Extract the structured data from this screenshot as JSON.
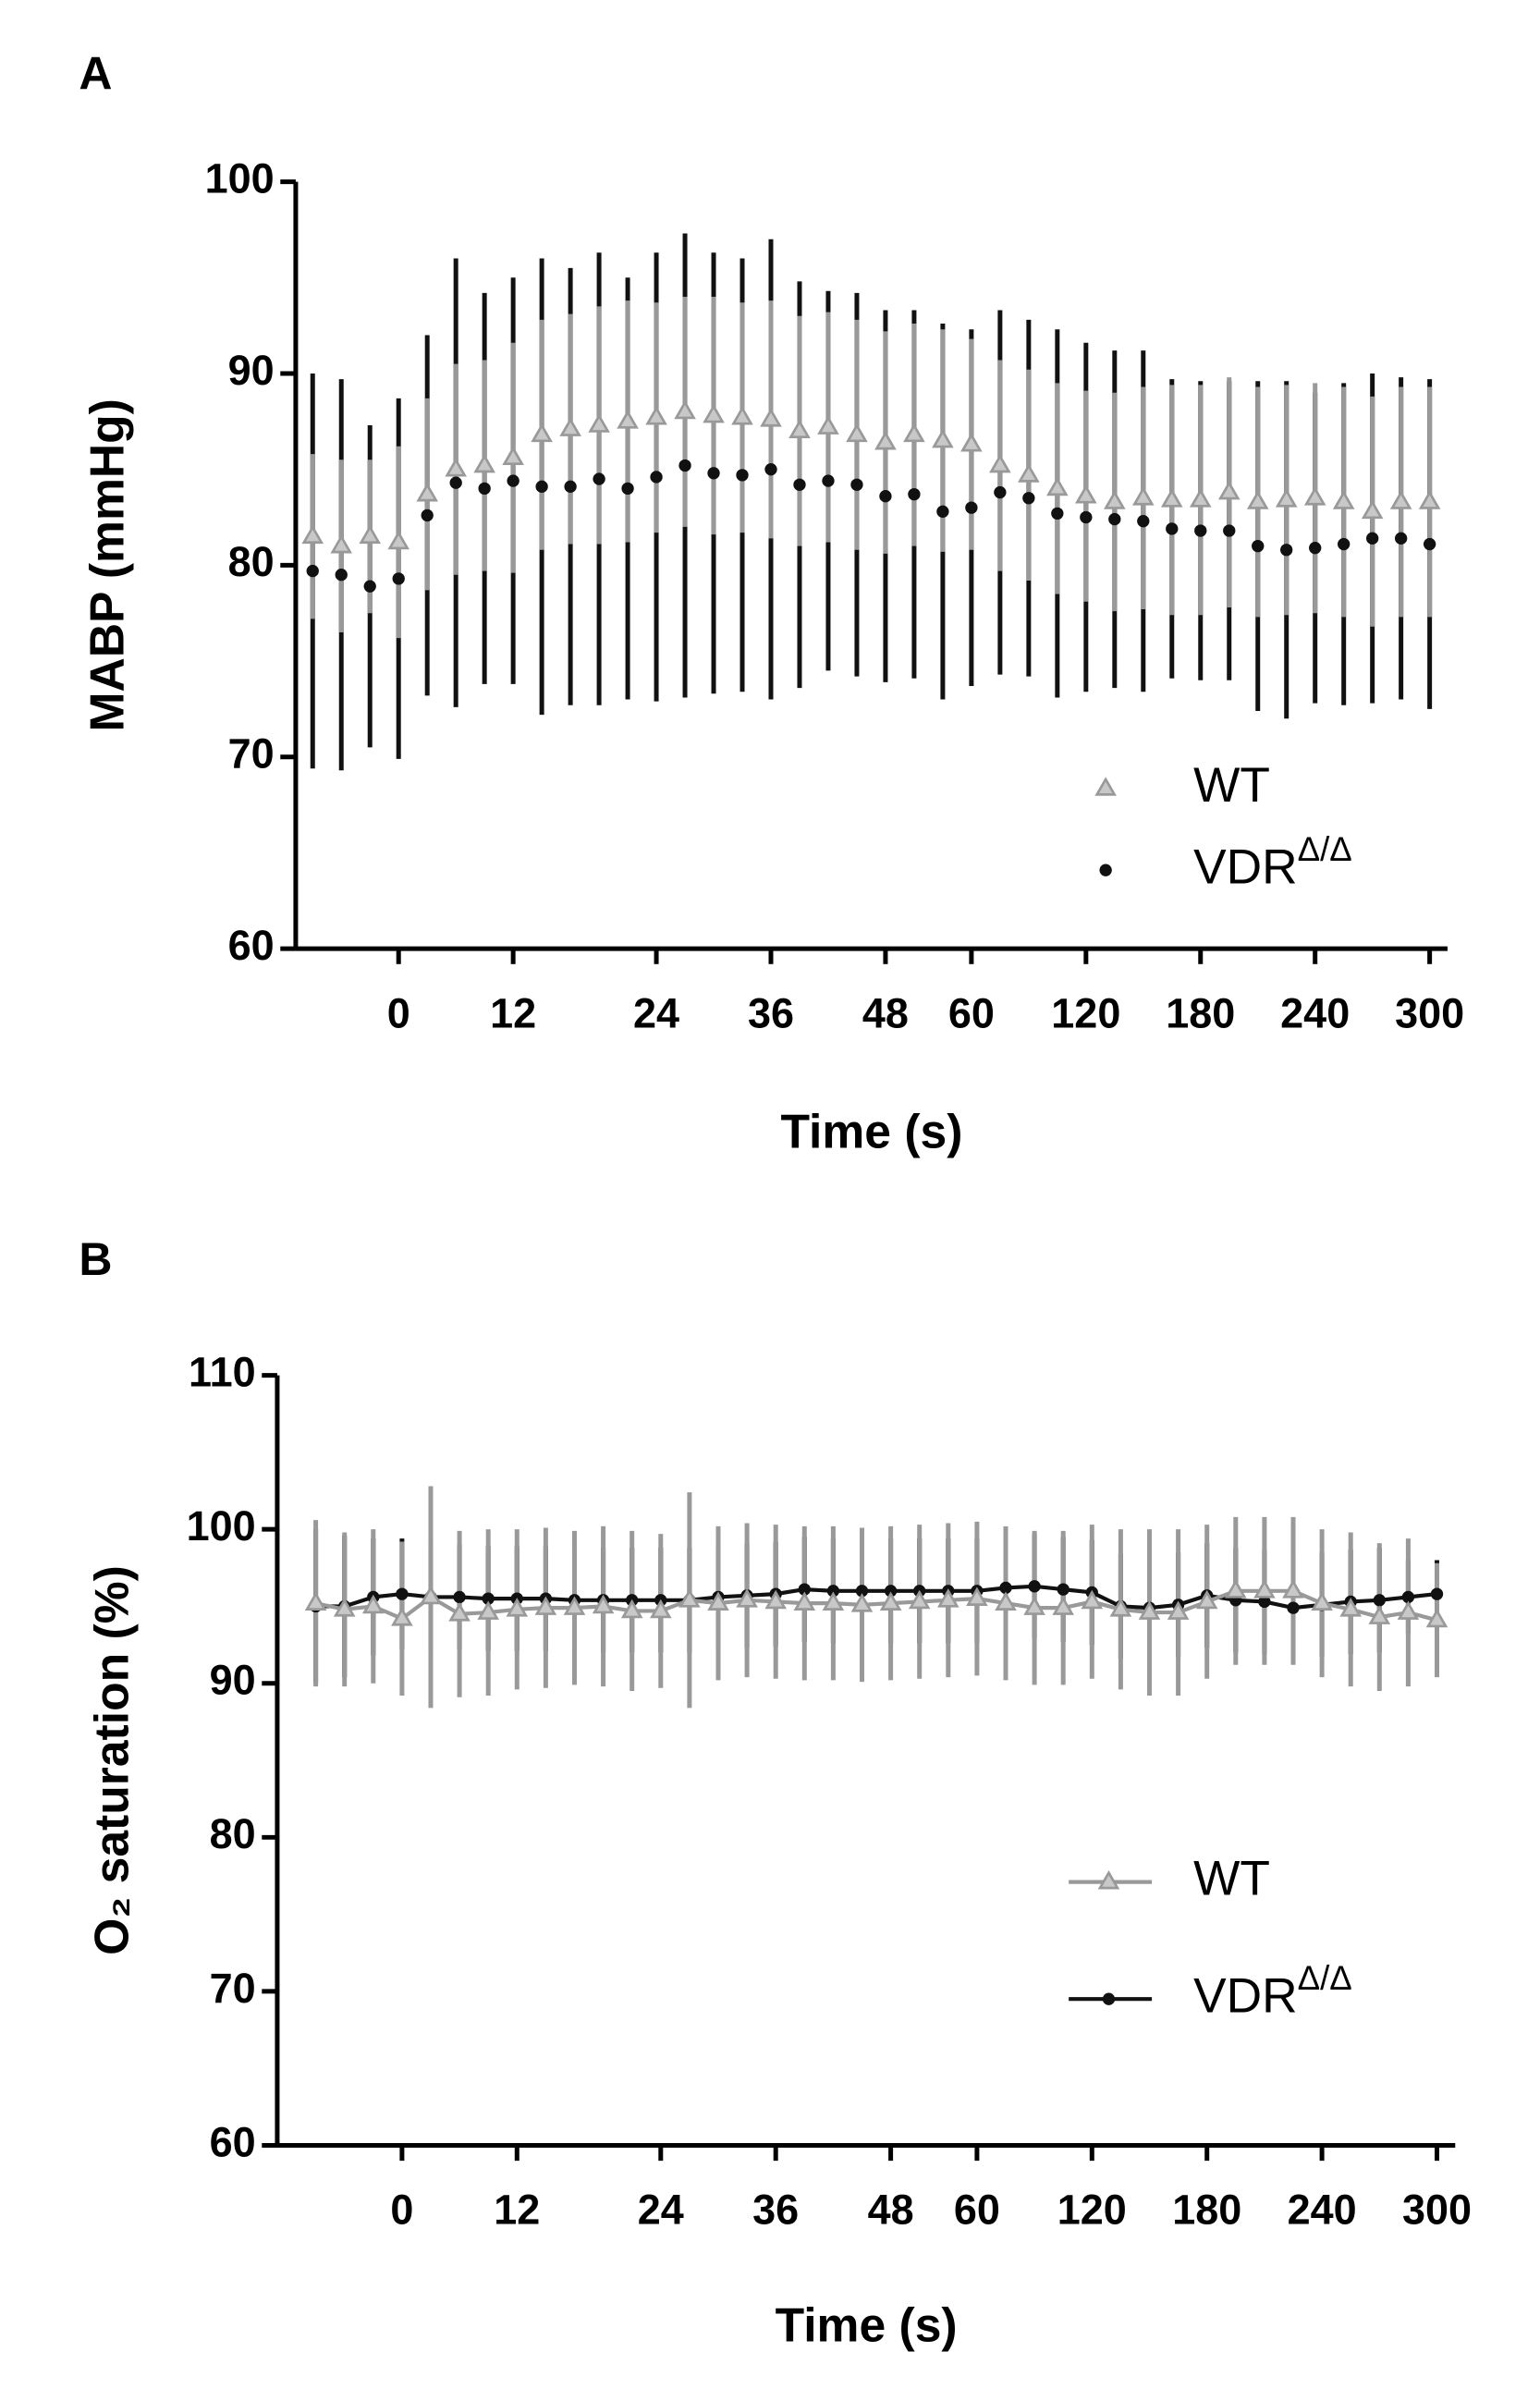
{
  "chart_data": [
    {
      "type": "scatter",
      "panel": "A",
      "x_label": "Time (s)",
      "y_label": "MABP (mmHg)",
      "categories": [
        null,
        null,
        null,
        "0",
        null,
        null,
        null,
        "12",
        null,
        null,
        null,
        null,
        "24",
        null,
        null,
        null,
        "36",
        null,
        null,
        null,
        "48",
        null,
        null,
        "60",
        null,
        null,
        null,
        "120",
        null,
        null,
        null,
        "180",
        null,
        null,
        null,
        "240",
        null,
        null,
        null,
        "300"
      ],
      "ylim": [
        60,
        100
      ],
      "yticks": [
        60,
        70,
        80,
        90,
        100
      ],
      "legend": "lower right",
      "series": [
        {
          "name": "WT",
          "color": "#999999",
          "marker": "triangle",
          "values": [
            81.5,
            81,
            81.5,
            81.2,
            83.7,
            85,
            85.2,
            85.6,
            86.8,
            87.1,
            87.3,
            87.5,
            87.7,
            88,
            87.8,
            87.7,
            87.6,
            87,
            87.2,
            86.8,
            86.4,
            86.8,
            86.5,
            86.3,
            85.2,
            84.7,
            84,
            83.6,
            83.3,
            83.5,
            83.4,
            83.4,
            83.8,
            83.3,
            83.4,
            83.5,
            83.3,
            82.8,
            83.3,
            83.3
          ],
          "errors": [
            4.3,
            4.5,
            4,
            5,
            5,
            5.5,
            5.5,
            6,
            6,
            6,
            6.2,
            6.3,
            6,
            6,
            6.2,
            6,
            6.2,
            6,
            6,
            6,
            5.8,
            5.8,
            5.8,
            5.5,
            5.5,
            5.5,
            5.5,
            5.5,
            5.7,
            5.8,
            6,
            6,
            6,
            6,
            6,
            6,
            6,
            6,
            6,
            6
          ]
        },
        {
          "name": "VDRΔ/Δ",
          "color": "#111111",
          "marker": "circle",
          "values": [
            79.7,
            79.5,
            78.9,
            79.3,
            82.6,
            84.3,
            84,
            84.4,
            84.1,
            84.1,
            84.5,
            84,
            84.6,
            85.2,
            84.8,
            84.7,
            85,
            84.2,
            84.4,
            84.2,
            83.6,
            83.7,
            82.8,
            83,
            83.8,
            83.5,
            82.7,
            82.5,
            82.4,
            82.3,
            81.9,
            81.8,
            81.8,
            81,
            80.8,
            80.9,
            81.1,
            81.4,
            81.4,
            81.1
          ],
          "errors": [
            10.3,
            10.2,
            8.4,
            9.4,
            9.4,
            11.7,
            10.2,
            10.6,
            11.9,
            11.4,
            11.8,
            11,
            11.7,
            12.1,
            11.5,
            11.3,
            12,
            10.6,
            9.9,
            10,
            9.7,
            9.6,
            9.8,
            9.3,
            9.5,
            9.3,
            9.6,
            9.1,
            8.8,
            8.9,
            7.8,
            7.8,
            7.8,
            8.6,
            8.8,
            8.1,
            8.4,
            8.6,
            8.4,
            8.6
          ]
        }
      ]
    },
    {
      "type": "line",
      "panel": "B",
      "x_label": "Time (s)",
      "y_label": "O₂ saturation (%)",
      "categories": [
        null,
        null,
        null,
        "0",
        null,
        null,
        null,
        "12",
        null,
        null,
        null,
        null,
        "24",
        null,
        null,
        null,
        "36",
        null,
        null,
        null,
        "48",
        null,
        null,
        "60",
        null,
        null,
        null,
        "120",
        null,
        null,
        null,
        "180",
        null,
        null,
        null,
        "240",
        null,
        null,
        null,
        "300"
      ],
      "ylim": [
        60,
        110
      ],
      "yticks": [
        60,
        70,
        80,
        90,
        100,
        110
      ],
      "legend": "lower right",
      "series": [
        {
          "name": "WT",
          "color": "#999999",
          "marker": "triangle",
          "values": [
            95.2,
            94.8,
            95,
            94.2,
            95.6,
            94.5,
            94.6,
            94.8,
            94.9,
            94.9,
            95,
            94.7,
            94.7,
            95.4,
            95.2,
            95.4,
            95.3,
            95.2,
            95.2,
            95.1,
            95.2,
            95.3,
            95.4,
            95.5,
            95.2,
            94.9,
            94.9,
            95.3,
            94.8,
            94.6,
            94.6,
            95.3,
            96,
            96,
            96,
            95.2,
            94.8,
            94.3,
            94.6,
            94.1
          ],
          "errors": [
            5.4,
            5,
            5,
            5,
            7.2,
            5.4,
            5.4,
            5.2,
            5.2,
            5,
            5.2,
            5.2,
            5,
            7,
            5,
            5,
            5,
            5,
            5,
            5,
            5,
            5,
            5,
            5,
            5,
            5,
            5,
            5,
            5.2,
            5.4,
            5.4,
            5,
            4.8,
            4.8,
            4.8,
            4.8,
            5,
            4.8,
            4.8,
            3.7
          ]
        },
        {
          "name": "VDRΔ/Δ",
          "color": "#111111",
          "marker": "circle",
          "values": [
            95,
            95,
            95.6,
            95.8,
            95.6,
            95.6,
            95.5,
            95.5,
            95.5,
            95.4,
            95.4,
            95.4,
            95.4,
            95.4,
            95.6,
            95.7,
            95.8,
            96.1,
            96,
            96,
            96,
            96,
            96,
            96,
            96.2,
            96.3,
            96.1,
            95.9,
            95,
            94.9,
            95.1,
            95.7,
            95.4,
            95.3,
            94.9,
            95.1,
            95.3,
            95.4,
            95.6,
            95.8
          ],
          "errors": [
            5,
            4.6,
            3.8,
            3.6,
            3.6,
            3.4,
            3.4,
            3.4,
            3.4,
            3.4,
            3.4,
            3.4,
            3.4,
            3.4,
            3.4,
            3.4,
            3.4,
            3.4,
            3.4,
            3.4,
            3.4,
            3.4,
            3.4,
            3.4,
            3.4,
            3.4,
            3.4,
            3.4,
            3.4,
            3.4,
            3.4,
            3.4,
            3.4,
            3.4,
            3.4,
            3.4,
            3.4,
            3.4,
            2.4,
            2.2
          ]
        }
      ]
    }
  ]
}
